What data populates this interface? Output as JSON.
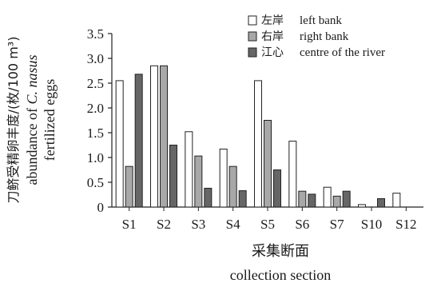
{
  "chart_data": {
    "type": "bar",
    "categories": [
      "S1",
      "S2",
      "S3",
      "S4",
      "S5",
      "S6",
      "S7",
      "S10",
      "S12"
    ],
    "series": [
      {
        "name_zh": "左岸",
        "name": "left bank",
        "color": "#ffffff",
        "values": [
          2.55,
          2.85,
          1.52,
          1.17,
          2.55,
          1.33,
          0.4,
          0.05,
          0.28
        ]
      },
      {
        "name_zh": "右岸",
        "name": "right bank",
        "color": "#a8a8a8",
        "values": [
          0.82,
          2.85,
          1.03,
          0.82,
          1.75,
          0.32,
          0.22,
          0.0,
          0.0
        ]
      },
      {
        "name_zh": "江心",
        "name": "centre of the river",
        "color": "#666666",
        "values": [
          2.68,
          1.25,
          0.38,
          0.33,
          0.75,
          0.26,
          0.32,
          0.17,
          0.0
        ]
      }
    ],
    "ylim": [
      0,
      3.5
    ],
    "yticks": [
      "0",
      "0.5",
      "1.0",
      "1.5",
      "2.0",
      "2.5",
      "3.0",
      "3.5"
    ],
    "ylabel_zh": "刀鲚受精卵丰度/(枚/100 m³)",
    "ylabel_en_1": "abundance of ",
    "ylabel_en_species": "C. nasus",
    "ylabel_en_2": "fertilized eggs",
    "xlabel_zh": "采集断面",
    "xlabel_en": "collection section",
    "legend_position": "top-right"
  }
}
